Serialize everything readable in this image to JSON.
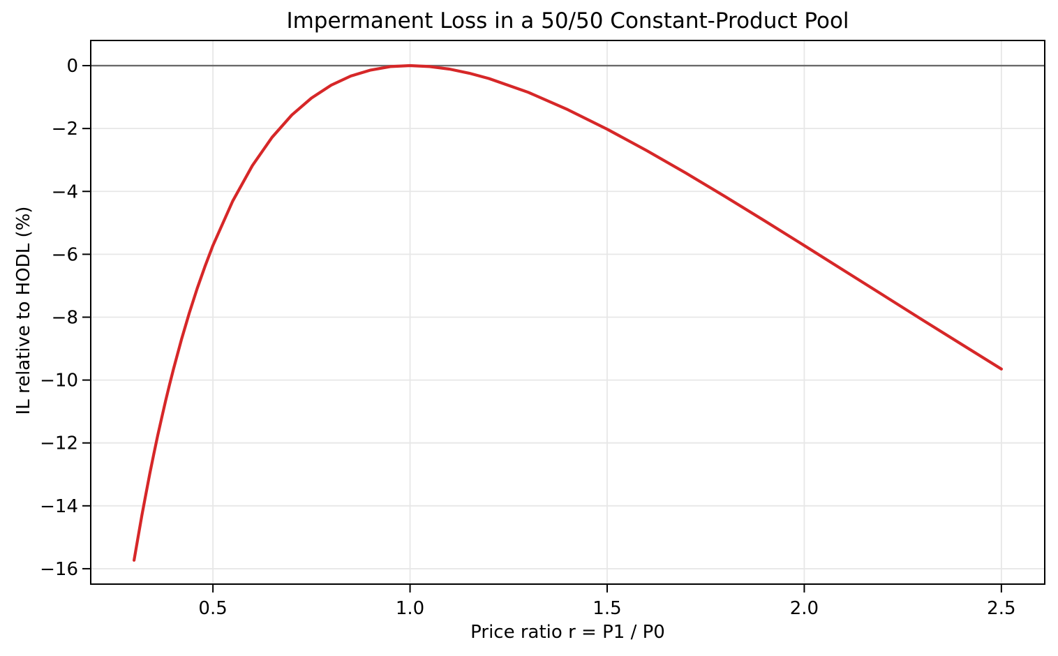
{
  "chart_data": {
    "type": "line",
    "title": "Impermanent Loss in a 50/50 Constant-Product Pool",
    "xlabel": "Price ratio r = P1 / P0",
    "ylabel": "IL relative to HODL (%)",
    "xlim": [
      0.19,
      2.61
    ],
    "ylim": [
      -16.49,
      0.8
    ],
    "grid": true,
    "legend": "none",
    "xticks": {
      "values": [
        0.5,
        1.0,
        1.5,
        2.0,
        2.5
      ],
      "labels": [
        "0.5",
        "1.0",
        "1.5",
        "2.0",
        "2.5"
      ]
    },
    "yticks": {
      "values": [
        0,
        -2,
        -4,
        -6,
        -8,
        -10,
        -12,
        -14,
        -16
      ],
      "labels": [
        "0",
        "−2",
        "−4",
        "−6",
        "−8",
        "−10",
        "−12",
        "−14",
        "−16"
      ]
    },
    "zero_line": {
      "y": 0,
      "color": "#6a6a6a",
      "width": 2.4
    },
    "colors": {
      "grid": "#e7e7e7",
      "spine": "#000000",
      "text": "#000000",
      "background": "#ffffff"
    },
    "series": [
      {
        "name": "impermanent-loss-curve",
        "color": "#d62728",
        "line_width": 4.2,
        "x": [
          0.3,
          0.31,
          0.32,
          0.33,
          0.34,
          0.35,
          0.36,
          0.37,
          0.38,
          0.39,
          0.4,
          0.42,
          0.44,
          0.46,
          0.48,
          0.5,
          0.55,
          0.6,
          0.65,
          0.7,
          0.75,
          0.8,
          0.85,
          0.9,
          0.95,
          1.0,
          1.05,
          1.1,
          1.15,
          1.2,
          1.3,
          1.4,
          1.5,
          1.6,
          1.7,
          1.8,
          1.9,
          2.0,
          2.1,
          2.2,
          2.3,
          2.4,
          2.5
        ],
        "y": [
          -15.73,
          -15.0,
          -14.29,
          -13.62,
          -12.97,
          -12.35,
          -11.76,
          -11.2,
          -10.66,
          -10.14,
          -9.65,
          -8.72,
          -7.87,
          -7.09,
          -6.38,
          -5.72,
          -4.31,
          -3.18,
          -2.28,
          -1.57,
          -1.03,
          -0.62,
          -0.33,
          -0.14,
          -0.03,
          0.0,
          -0.03,
          -0.11,
          -0.24,
          -0.41,
          -0.85,
          -1.4,
          -2.02,
          -2.7,
          -3.42,
          -4.17,
          -4.94,
          -5.72,
          -6.51,
          -7.3,
          -8.09,
          -8.87,
          -9.65
        ]
      }
    ]
  }
}
